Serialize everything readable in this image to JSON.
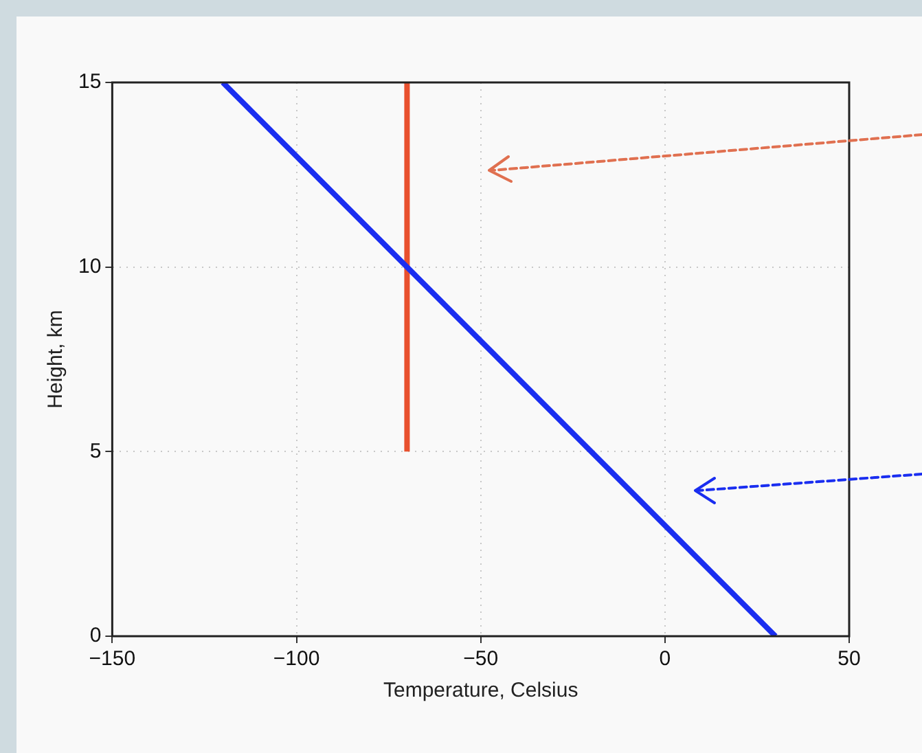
{
  "chart_data": {
    "type": "line",
    "xlabel": "Temperature, Celsius",
    "ylabel": "Height, km",
    "xlim": [
      -150,
      50
    ],
    "xticks": [
      -150,
      -100,
      -50,
      0,
      50
    ],
    "ylim": [
      0,
      15
    ],
    "yticks": [
      0,
      5,
      10,
      15
    ],
    "grid": true,
    "series": [
      {
        "color": "#1a2ef0",
        "x": [
          -120,
          30
        ],
        "values": [
          15,
          0
        ]
      },
      {
        "color": "#e8502e",
        "x": [
          -70,
          -70
        ],
        "values": [
          5,
          15
        ]
      }
    ]
  }
}
